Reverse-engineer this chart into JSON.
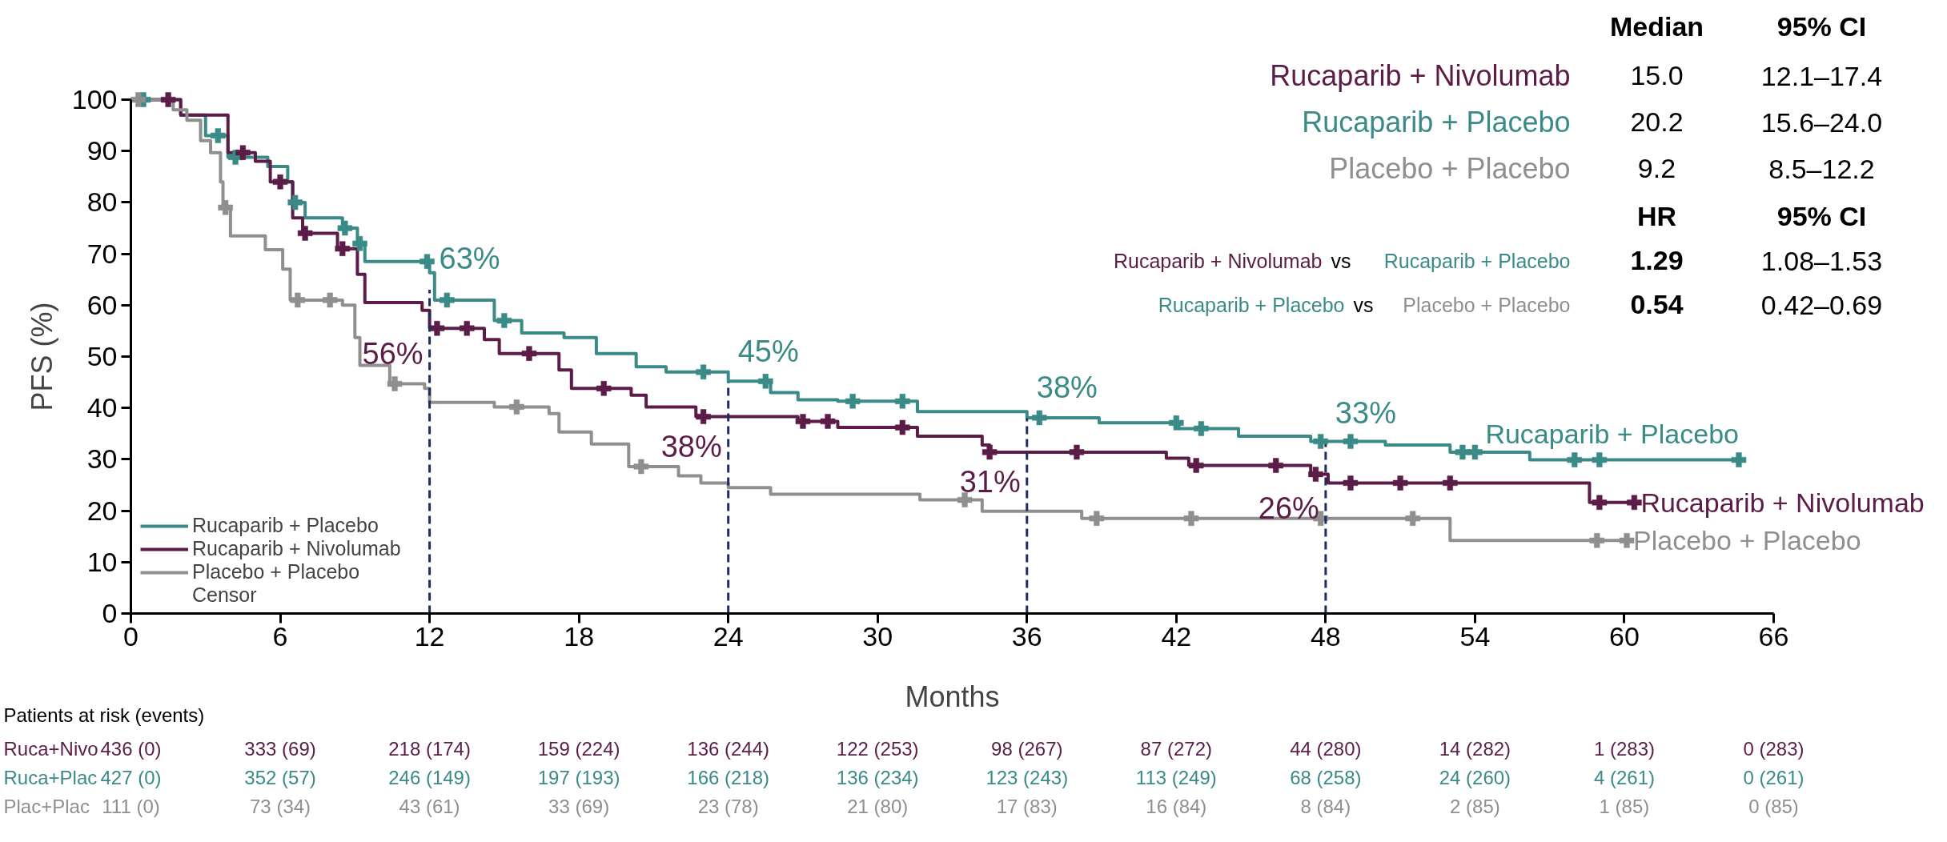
{
  "chart_data": {
    "type": "step",
    "xlabel": "Months",
    "ylabel": "PFS (%)",
    "xlim": [
      0,
      66
    ],
    "ylim": [
      0,
      100
    ],
    "xticks": [
      0,
      6,
      12,
      18,
      24,
      30,
      36,
      42,
      48,
      54,
      60,
      66
    ],
    "yticks": [
      0,
      10,
      20,
      30,
      40,
      50,
      60,
      70,
      80,
      90,
      100
    ],
    "grid": false,
    "legend": "bottom left",
    "line_style": "solid",
    "series": [
      {
        "name": "Rucaparib + Placebo",
        "color": "#3a8b87",
        "x": [
          0,
          2,
          3,
          3.9,
          5.5,
          6.3,
          6.5,
          7,
          8.5,
          9.1,
          9.4,
          12,
          12.2,
          14.6,
          15.7,
          17.4,
          18.7,
          20.3,
          21.5,
          24,
          25.7,
          26.8,
          28.4,
          31.6,
          36,
          38.9,
          42.1,
          44.5,
          47.4,
          50.4,
          53,
          56.2,
          64.6
        ],
        "values": [
          100,
          97,
          93,
          88.8,
          87,
          84,
          80,
          77,
          75,
          72,
          68.5,
          66.3,
          61,
          57,
          54.6,
          53.7,
          50.6,
          48,
          47,
          45.2,
          43,
          41.6,
          41.3,
          39.3,
          38.1,
          37.1,
          36,
          34.5,
          33.5,
          32.8,
          31.4,
          29.9,
          29.9
        ]
      },
      {
        "name": "Rucaparib + Nivolumab",
        "color": "#5b1d47",
        "x": [
          0,
          2,
          3.9,
          5,
          5.6,
          6.5,
          6.9,
          8.3,
          9.1,
          9.4,
          11.7,
          12,
          14.2,
          14.8,
          17.2,
          17.7,
          20.1,
          20.7,
          22.7,
          26.8,
          28.4,
          31.6,
          34.2,
          34.5,
          41.6,
          42.5,
          47.4,
          48.1,
          58.6,
          60.4
        ],
        "values": [
          100,
          97,
          89.7,
          88,
          84,
          77,
          74,
          71,
          66,
          60.5,
          59,
          55.5,
          53.3,
          50.6,
          47.4,
          43.8,
          42.5,
          40.2,
          38.3,
          37.4,
          36.2,
          34.5,
          32.8,
          31.4,
          30.2,
          28.8,
          27.1,
          25.4,
          21.6,
          21.6
        ]
      },
      {
        "name": "Placebo + Placebo",
        "color": "#8f8f8f",
        "x": [
          0,
          1.7,
          2.25,
          2.8,
          3.2,
          3.6,
          3.7,
          4,
          5.4,
          6.1,
          6.4,
          8.5,
          9,
          9.2,
          10.4,
          11.8,
          12,
          14.6,
          16.8,
          17.2,
          18.5,
          20,
          22,
          22.9,
          24,
          25.7,
          31.7,
          34.2,
          38.2,
          53,
          60.1
        ],
        "values": [
          100,
          98,
          96,
          92,
          89.7,
          84,
          79,
          73.5,
          70.8,
          67,
          61,
          60,
          53.7,
          48.3,
          44.7,
          43.8,
          41.1,
          40.2,
          38.9,
          35.3,
          33,
          28.6,
          26.8,
          25.4,
          24.5,
          23.2,
          22.1,
          19.9,
          18.5,
          14.2,
          14.2
        ]
      },
      {
        "type": "scatter",
        "marker": "cross",
        "color": "#3a8b87",
        "x": [
          0.5,
          3.5,
          4.2,
          6.6,
          8.6,
          9.2,
          11.9,
          12.7,
          15,
          23,
          25.5,
          29,
          31,
          36.5,
          42,
          43,
          47.8,
          49,
          53.5,
          54,
          58,
          59,
          64.6
        ],
        "values": [
          100,
          93,
          88.8,
          80,
          75,
          72,
          68.5,
          61,
          57,
          47,
          45.2,
          41.3,
          41.3,
          38.1,
          37.1,
          36,
          33.5,
          33.5,
          31.4,
          31.4,
          29.9,
          29.9,
          29.9
        ]
      },
      {
        "type": "scatter",
        "marker": "cross",
        "color": "#5b1d47",
        "x": [
          1.5,
          4.5,
          6,
          7,
          8.5,
          12.3,
          13.5,
          16,
          19,
          23,
          27,
          28,
          31,
          34.5,
          38,
          42.8,
          46,
          47.6,
          49,
          51,
          53,
          59,
          60.4
        ],
        "values": [
          100,
          89.7,
          84,
          74,
          71,
          55.5,
          55.5,
          50.6,
          43.8,
          38.3,
          37.4,
          37.4,
          36.2,
          31.4,
          31.4,
          28.8,
          28.8,
          27.1,
          25.4,
          25.4,
          25.4,
          21.6,
          21.6
        ]
      },
      {
        "type": "scatter",
        "marker": "cross",
        "color": "#8f8f8f",
        "x": [
          0.3,
          3.8,
          6.7,
          8,
          10.6,
          15.5,
          20.5,
          33.5,
          38.8,
          42.6,
          47.8,
          51.5,
          58.9,
          60.1
        ],
        "values": [
          100,
          79,
          61,
          61,
          44.7,
          40.2,
          28.6,
          22.1,
          18.5,
          18.5,
          18.5,
          18.5,
          14.2,
          14.2
        ]
      }
    ],
    "ref_lines": [
      {
        "axis": "x",
        "value": 12,
        "color": "#1f2d5a",
        "line_style": "dashed"
      },
      {
        "axis": "x",
        "value": 24,
        "color": "#1f2d5a",
        "line_style": "dashed"
      },
      {
        "axis": "x",
        "value": 36,
        "color": "#1f2d5a",
        "line_style": "dashed"
      },
      {
        "axis": "x",
        "value": 48,
        "color": "#1f2d5a",
        "line_style": "dashed"
      }
    ],
    "annotations": [
      {
        "text": "63%",
        "x": 12,
        "y": 63
      },
      {
        "text": "56%",
        "x": 12,
        "y": 56
      },
      {
        "text": "45%",
        "x": 24,
        "y": 45
      },
      {
        "text": "38%",
        "x": 24,
        "y": 38
      },
      {
        "text": "38%",
        "x": 36,
        "y": 38
      },
      {
        "text": "31%",
        "x": 36,
        "y": 31
      },
      {
        "text": "33%",
        "x": 48,
        "y": 33
      },
      {
        "text": "26%",
        "x": 48,
        "y": 26
      },
      "Median",
      "95% CI",
      "Rucaparib + Nivolumab",
      "15.0",
      "12.1–17.4",
      "Rucaparib + Placebo",
      "20.2",
      "15.6–24.0",
      "Placebo + Placebo",
      "9.2",
      "8.5–12.2",
      "HR",
      "95% CI",
      "Rucaparib + Nivolumab",
      "vs",
      "Rucaparib + Placebo",
      "1.29",
      "1.08–1.53",
      "Rucaparib + Placebo",
      "vs",
      "Placebo + Placebo",
      "0.54",
      "0.42–0.69",
      "Patients at risk (events)",
      "Ruca+Nivo",
      "436 (0)",
      "333 (69)",
      "218 (174)",
      "159 (224)",
      "136 (244)",
      "122 (253)",
      "98 (267)",
      "87 (272)",
      "44 (280)",
      "14 (282)",
      "1 (283)",
      "0 (283)",
      "Ruca+Plac",
      "427 (0)",
      "352 (57)",
      "246 (149)",
      "197 (193)",
      "166 (218)",
      "136 (234)",
      "123 (243)",
      "113 (249)",
      "68 (258)",
      "24 (260)",
      "4 (261)",
      "0 (261)",
      "Plac+Plac",
      "111 (0)",
      "73 (34)",
      "43 (61)",
      "33 (69)",
      "23 (78)",
      "21 (80)",
      "17 (83)",
      "16 (84)",
      "8 (84)",
      "2 (85)",
      "1 (85)",
      "0 (85)",
      "Censor"
    ]
  }
}
